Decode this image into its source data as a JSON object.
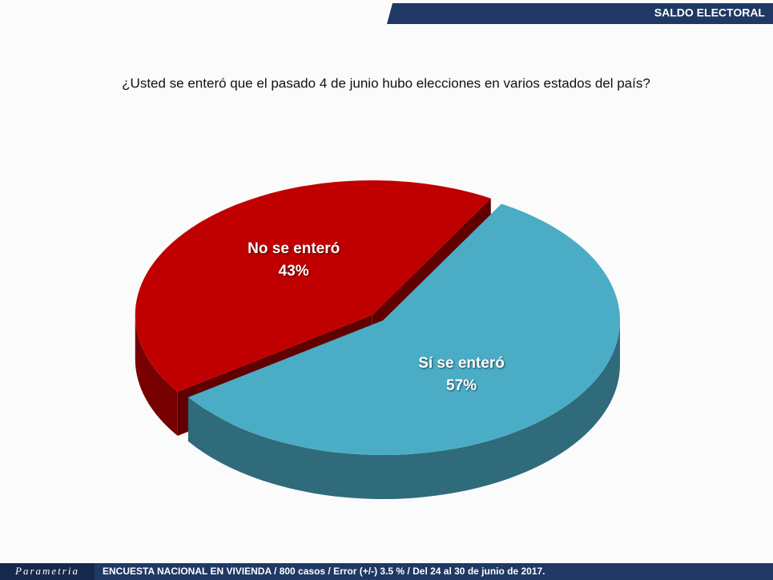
{
  "header": "SALDO ELECTORAL",
  "logo": "Parametria",
  "footer": "ENCUESTA NACIONAL EN VIVIENDA / 800 casos / Error (+/-) 3.5 % / Del 24 al 30 de junio de 2017.",
  "chart_data": {
    "type": "pie",
    "title": "¿Usted se enteró que el pasado 4 de junio hubo elecciones en varios estados del país?",
    "categories": [
      "Sí se enteró",
      "No se enteró"
    ],
    "values": [
      57,
      43
    ],
    "value_labels": [
      "57%",
      "43%"
    ],
    "colors": [
      "#4bacc6",
      "#c00000"
    ]
  }
}
